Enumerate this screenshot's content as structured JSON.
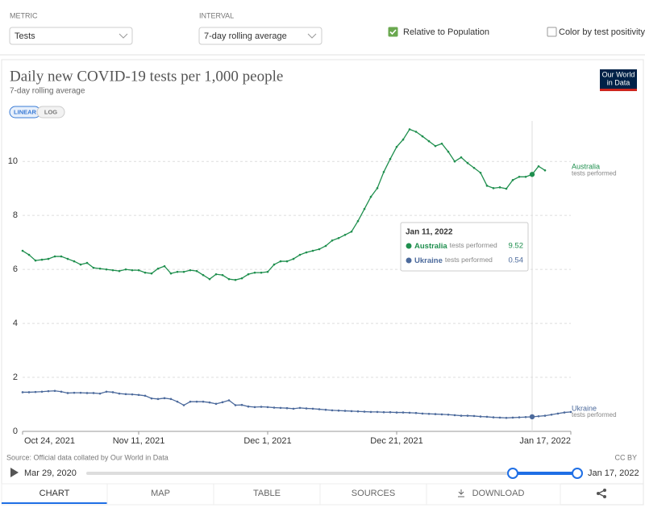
{
  "controls": {
    "metric_label": "METRIC",
    "metric_value": "Tests",
    "interval_label": "INTERVAL",
    "interval_value": "7-day rolling average",
    "relative": {
      "label": "Relative to Population",
      "checked": true
    },
    "color_by": {
      "label": "Color by test positivity",
      "checked": false
    }
  },
  "chart_data": {
    "type": "line",
    "title": "Daily new COVID-19 tests per 1,000 people",
    "subtitle": "7-day rolling average",
    "scale_buttons": [
      "LINEAR",
      "LOG"
    ],
    "log_scale": false,
    "grid": true,
    "x": [
      "Oct 24, 2021",
      "Oct 25, 2021",
      "Oct 26, 2021",
      "Oct 27, 2021",
      "Oct 28, 2021",
      "Oct 29, 2021",
      "Oct 30, 2021",
      "Oct 31, 2021",
      "Nov 1, 2021",
      "Nov 2, 2021",
      "Nov 3, 2021",
      "Nov 4, 2021",
      "Nov 5, 2021",
      "Nov 6, 2021",
      "Nov 7, 2021",
      "Nov 8, 2021",
      "Nov 9, 2021",
      "Nov 10, 2021",
      "Nov 11, 2021",
      "Nov 12, 2021",
      "Nov 13, 2021",
      "Nov 14, 2021",
      "Nov 15, 2021",
      "Nov 16, 2021",
      "Nov 17, 2021",
      "Nov 18, 2021",
      "Nov 19, 2021",
      "Nov 20, 2021",
      "Nov 21, 2021",
      "Nov 22, 2021",
      "Nov 23, 2021",
      "Nov 24, 2021",
      "Nov 25, 2021",
      "Nov 26, 2021",
      "Nov 27, 2021",
      "Nov 28, 2021",
      "Nov 29, 2021",
      "Nov 30, 2021",
      "Dec 1, 2021",
      "Dec 2, 2021",
      "Dec 3, 2021",
      "Dec 4, 2021",
      "Dec 5, 2021",
      "Dec 6, 2021",
      "Dec 7, 2021",
      "Dec 8, 2021",
      "Dec 9, 2021",
      "Dec 10, 2021",
      "Dec 11, 2021",
      "Dec 12, 2021",
      "Dec 13, 2021",
      "Dec 14, 2021",
      "Dec 15, 2021",
      "Dec 16, 2021",
      "Dec 17, 2021",
      "Dec 18, 2021",
      "Dec 19, 2021",
      "Dec 20, 2021",
      "Dec 21, 2021",
      "Dec 22, 2021",
      "Dec 23, 2021",
      "Dec 24, 2021",
      "Dec 25, 2021",
      "Dec 26, 2021",
      "Dec 27, 2021",
      "Dec 28, 2021",
      "Dec 29, 2021",
      "Dec 30, 2021",
      "Dec 31, 2021",
      "Jan 1, 2022",
      "Jan 2, 2022",
      "Jan 3, 2022",
      "Jan 4, 2022",
      "Jan 5, 2022",
      "Jan 6, 2022",
      "Jan 7, 2022",
      "Jan 8, 2022",
      "Jan 9, 2022",
      "Jan 10, 2022",
      "Jan 11, 2022",
      "Jan 12, 2022",
      "Jan 13, 2022",
      "Jan 14, 2022",
      "Jan 15, 2022",
      "Jan 16, 2022",
      "Jan 17, 2022"
    ],
    "xticks": [
      "Oct 24, 2021",
      "Nov 11, 2021",
      "Dec 1, 2021",
      "Dec 21, 2021",
      "Jan 17, 2022"
    ],
    "ylim": [
      0,
      11.5
    ],
    "yticks": [
      0,
      2,
      4,
      6,
      8,
      10
    ],
    "series_unit": "tests performed",
    "series": [
      {
        "name": "Australia",
        "color": "#1f8f4e",
        "values": [
          6.69,
          6.54,
          6.33,
          6.36,
          6.39,
          6.48,
          6.48,
          6.39,
          6.3,
          6.18,
          6.24,
          6.06,
          6.03,
          6.0,
          5.97,
          5.94,
          6.0,
          5.97,
          5.97,
          5.88,
          5.85,
          6.03,
          6.12,
          5.85,
          5.91,
          5.91,
          5.97,
          5.94,
          5.79,
          5.64,
          5.82,
          5.79,
          5.64,
          5.61,
          5.67,
          5.82,
          5.88,
          5.88,
          5.91,
          6.18,
          6.3,
          6.3,
          6.39,
          6.54,
          6.63,
          6.69,
          6.75,
          6.87,
          7.07,
          7.16,
          7.28,
          7.4,
          7.79,
          8.24,
          8.69,
          9.01,
          9.61,
          10.09,
          10.54,
          10.81,
          11.19,
          11.1,
          10.93,
          10.75,
          10.57,
          10.66,
          10.36,
          10.0,
          10.15,
          9.94,
          9.76,
          9.58,
          9.1,
          9.01,
          9.04,
          8.99,
          9.31,
          9.43,
          9.43,
          9.52,
          9.82,
          9.67,
          null,
          null,
          null,
          null
        ]
      },
      {
        "name": "Ukraine",
        "color": "#4c6a9c",
        "values": [
          1.45,
          1.45,
          1.46,
          1.47,
          1.49,
          1.5,
          1.47,
          1.42,
          1.43,
          1.43,
          1.42,
          1.42,
          1.4,
          1.47,
          1.45,
          1.4,
          1.38,
          1.37,
          1.35,
          1.32,
          1.22,
          1.2,
          1.23,
          1.2,
          1.1,
          0.97,
          1.1,
          1.1,
          1.1,
          1.07,
          1.02,
          1.08,
          1.15,
          0.97,
          0.98,
          0.92,
          0.9,
          0.91,
          0.9,
          0.88,
          0.87,
          0.86,
          0.84,
          0.87,
          0.85,
          0.84,
          0.82,
          0.8,
          0.78,
          0.77,
          0.76,
          0.75,
          0.74,
          0.73,
          0.72,
          0.72,
          0.71,
          0.71,
          0.7,
          0.7,
          0.69,
          0.68,
          0.66,
          0.65,
          0.64,
          0.63,
          0.62,
          0.6,
          0.58,
          0.58,
          0.57,
          0.55,
          0.54,
          0.52,
          0.51,
          0.5,
          0.51,
          0.52,
          0.53,
          0.54,
          0.56,
          0.58,
          0.62,
          0.66,
          0.7,
          0.72
        ]
      }
    ],
    "tooltip_x": "Jan 11, 2022"
  },
  "logo": [
    "Our World",
    "in Data"
  ],
  "footer": {
    "source": "Source: Official data collated by Our World in Data",
    "license": "CC BY",
    "timeline_start": "Mar 29, 2020",
    "timeline_end": "Jan 17, 2022"
  },
  "tabs": [
    "CHART",
    "MAP",
    "TABLE",
    "SOURCES",
    "DOWNLOAD"
  ]
}
